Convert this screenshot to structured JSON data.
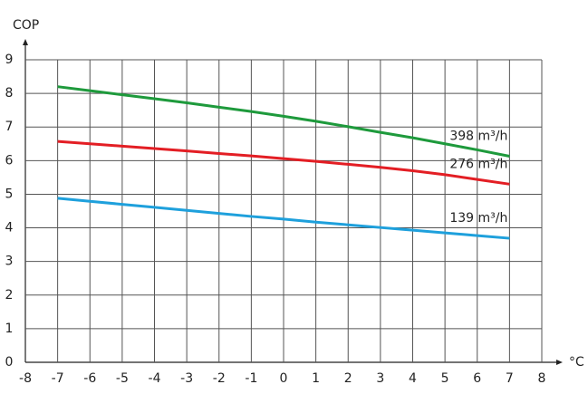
{
  "chart_data": {
    "type": "line",
    "x_label": "°C",
    "y_label": "COP",
    "x": [
      -7,
      -6,
      -5,
      -4,
      -3,
      -2,
      -1,
      0,
      1,
      2,
      3,
      4,
      5,
      6,
      7
    ],
    "series": [
      {
        "name": "398 m³/h",
        "color": "#1e9a3c",
        "values": [
          8.2,
          8.08,
          7.96,
          7.84,
          7.72,
          7.59,
          7.46,
          7.32,
          7.17,
          7.01,
          6.84,
          6.68,
          6.5,
          6.32,
          6.13
        ]
      },
      {
        "name": "276 m³/h",
        "color": "#e31e24",
        "values": [
          6.57,
          6.5,
          6.43,
          6.36,
          6.29,
          6.21,
          6.14,
          6.06,
          5.98,
          5.89,
          5.8,
          5.7,
          5.58,
          5.44,
          5.3
        ]
      },
      {
        "name": "139 m³/h",
        "color": "#1ea0dc",
        "values": [
          4.88,
          4.79,
          4.7,
          4.61,
          4.52,
          4.43,
          4.34,
          4.26,
          4.17,
          4.09,
          4.01,
          3.93,
          3.85,
          3.77,
          3.69
        ]
      }
    ],
    "xlim": [
      -8,
      8
    ],
    "xticks": [
      -8,
      -7,
      -6,
      -5,
      -4,
      -3,
      -2,
      -1,
      0,
      1,
      2,
      3,
      4,
      5,
      6,
      7,
      8
    ],
    "ylim": [
      0,
      9
    ],
    "yticks": [
      0,
      1,
      2,
      3,
      4,
      5,
      6,
      7,
      8,
      9
    ],
    "grid": true
  }
}
